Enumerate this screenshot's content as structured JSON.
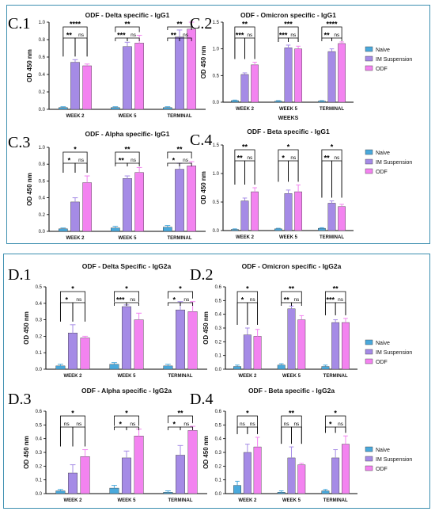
{
  "colors": {
    "Naive": "#4aa9dc",
    "IM Suspension": "#a58be6",
    "ODF": "#f383f0",
    "axis": "#000000"
  },
  "legend": {
    "entries": [
      "Naive",
      "IM Suspension",
      "ODF"
    ]
  },
  "chart_data": [
    {
      "id": "c1",
      "label": "C.1",
      "type": "bar",
      "title": "ODF - Delta specific - IgG1",
      "ylabel": "OD 450 nm",
      "xlabel": "",
      "ylim": [
        0,
        1.0
      ],
      "yticks": [
        "0.0",
        "0.2",
        "0.4",
        "0.6",
        "0.8",
        "1.0"
      ],
      "categories": [
        "WEEK 2",
        "WEEK 5",
        "TERMINAL"
      ],
      "series": [
        {
          "name": "Naive",
          "values": [
            0.02,
            0.02,
            0.02
          ],
          "errors": [
            0.01,
            0.01,
            0.01
          ]
        },
        {
          "name": "IM Suspension",
          "values": [
            0.54,
            0.72,
            0.83
          ],
          "errors": [
            0.03,
            0.05,
            0.08
          ]
        },
        {
          "name": "ODF",
          "values": [
            0.5,
            0.76,
            0.92
          ],
          "errors": [
            0.02,
            0.09,
            0.08
          ]
        }
      ],
      "brackets": [
        [
          "WEEK 2",
          "Naive",
          "ODF",
          "****"
        ],
        [
          "WEEK 2",
          "Naive",
          "IM Suspension",
          "**"
        ],
        [
          "WEEK 2",
          "IM Suspension",
          "ODF",
          "ns"
        ],
        [
          "WEEK 5",
          "Naive",
          "ODF",
          "**"
        ],
        [
          "WEEK 5",
          "Naive",
          "IM Suspension",
          "***"
        ],
        [
          "WEEK 5",
          "IM Suspension",
          "ODF",
          "ns"
        ],
        [
          "TERMINAL",
          "Naive",
          "ODF",
          "**"
        ],
        [
          "TERMINAL",
          "Naive",
          "IM Suspension",
          "**"
        ],
        [
          "TERMINAL",
          "IM Suspension",
          "ODF",
          "ns"
        ]
      ]
    },
    {
      "id": "c2",
      "label": "C.2",
      "type": "bar",
      "title": "ODF - Omicron specific - IgG1",
      "ylabel": "OD 450 nm",
      "xlabel": "WEEKS",
      "ylim": [
        0,
        1.5
      ],
      "yticks": [
        "0.0",
        "0.5",
        "1.0",
        "1.5"
      ],
      "categories": [
        "WEEK 2",
        "WEEK 5",
        "TERMINAL"
      ],
      "series": [
        {
          "name": "Naive",
          "values": [
            0.03,
            0.02,
            0.02
          ],
          "errors": [
            0.01,
            0.01,
            0.01
          ]
        },
        {
          "name": "IM Suspension",
          "values": [
            0.52,
            1.02,
            0.95
          ],
          "errors": [
            0.03,
            0.05,
            0.05
          ]
        },
        {
          "name": "ODF",
          "values": [
            0.7,
            1.0,
            1.1
          ],
          "errors": [
            0.05,
            0.05,
            0.03
          ]
        }
      ],
      "brackets": [
        [
          "WEEK 2",
          "Naive",
          "ODF",
          "**"
        ],
        [
          "WEEK 2",
          "Naive",
          "IM Suspension",
          "***"
        ],
        [
          "WEEK 2",
          "IM Suspension",
          "ODF",
          "ns"
        ],
        [
          "WEEK 5",
          "Naive",
          "ODF",
          "***"
        ],
        [
          "WEEK 5",
          "Naive",
          "IM Suspension",
          "***"
        ],
        [
          "WEEK 5",
          "IM Suspension",
          "ODF",
          "ns"
        ],
        [
          "TERMINAL",
          "Naive",
          "ODF",
          "****"
        ],
        [
          "TERMINAL",
          "Naive",
          "IM Suspension",
          "**"
        ],
        [
          "TERMINAL",
          "IM Suspension",
          "ODF",
          "ns"
        ]
      ]
    },
    {
      "id": "c3",
      "label": "C.3",
      "type": "bar",
      "title": "ODF - Alpha specific- IgG1",
      "ylabel": "OD 450 nm",
      "xlabel": "",
      "ylim": [
        0,
        1.0
      ],
      "yticks": [
        "0.0",
        "0.2",
        "0.4",
        "0.6",
        "0.8",
        "1.0"
      ],
      "categories": [
        "WEEK 2",
        "WEEK 5",
        "TERMINAL"
      ],
      "series": [
        {
          "name": "Naive",
          "values": [
            0.03,
            0.04,
            0.05
          ],
          "errors": [
            0.01,
            0.02,
            0.02
          ]
        },
        {
          "name": "IM Suspension",
          "values": [
            0.35,
            0.63,
            0.74
          ],
          "errors": [
            0.05,
            0.03,
            0.07
          ]
        },
        {
          "name": "ODF",
          "values": [
            0.58,
            0.7,
            0.78
          ],
          "errors": [
            0.08,
            0.06,
            0.05
          ]
        }
      ],
      "brackets": [
        [
          "WEEK 2",
          "Naive",
          "ODF",
          "*"
        ],
        [
          "WEEK 2",
          "Naive",
          "IM Suspension",
          "*"
        ],
        [
          "WEEK 2",
          "IM Suspension",
          "ODF",
          "ns"
        ],
        [
          "WEEK 5",
          "Naive",
          "ODF",
          "**"
        ],
        [
          "WEEK 5",
          "Naive",
          "IM Suspension",
          "**"
        ],
        [
          "WEEK 5",
          "IM Suspension",
          "ODF",
          "ns"
        ],
        [
          "TERMINAL",
          "Naive",
          "ODF",
          "**"
        ],
        [
          "TERMINAL",
          "Naive",
          "IM Suspension",
          "*"
        ],
        [
          "TERMINAL",
          "IM Suspension",
          "ODF",
          "ns"
        ]
      ]
    },
    {
      "id": "c4",
      "label": "C.4",
      "type": "bar",
      "title": "ODF - Beta specific - IgG1",
      "ylabel": "OD 450 nm",
      "xlabel": "",
      "ylim": [
        0,
        1.5
      ],
      "yticks": [
        "0.0",
        "0.5",
        "1.0",
        "1.5"
      ],
      "categories": [
        "WEEK 2",
        "WEEK 5",
        "TERMINAL"
      ],
      "series": [
        {
          "name": "Naive",
          "values": [
            0.02,
            0.03,
            0.04
          ],
          "errors": [
            0.01,
            0.01,
            0.01
          ]
        },
        {
          "name": "IM Suspension",
          "values": [
            0.52,
            0.65,
            0.48
          ],
          "errors": [
            0.05,
            0.06,
            0.04
          ]
        },
        {
          "name": "ODF",
          "values": [
            0.68,
            0.68,
            0.42
          ],
          "errors": [
            0.07,
            0.12,
            0.04
          ]
        }
      ],
      "brackets": [
        [
          "WEEK 2",
          "Naive",
          "ODF",
          "**"
        ],
        [
          "WEEK 2",
          "Naive",
          "IM Suspension",
          "**"
        ],
        [
          "WEEK 2",
          "IM Suspension",
          "ODF",
          "ns"
        ],
        [
          "WEEK 5",
          "Naive",
          "ODF",
          "*"
        ],
        [
          "WEEK 5",
          "Naive",
          "IM Suspension",
          "*"
        ],
        [
          "WEEK 5",
          "IM Suspension",
          "ODF",
          "ns"
        ],
        [
          "TERMINAL",
          "Naive",
          "ODF",
          "*"
        ],
        [
          "TERMINAL",
          "Naive",
          "IM Suspension",
          "**"
        ],
        [
          "TERMINAL",
          "IM Suspension",
          "ODF",
          "ns"
        ]
      ]
    },
    {
      "id": "d1",
      "label": "D.1",
      "type": "bar",
      "title": "ODF - Delta Specific - IgG2a",
      "ylabel": "OD 450 nm",
      "xlabel": "",
      "ylim": [
        0,
        0.5
      ],
      "yticks": [
        "0.0",
        "0.1",
        "0.2",
        "0.3",
        "0.4",
        "0.5"
      ],
      "categories": [
        "WEEK 2",
        "WEEK 5",
        "TERMINAL"
      ],
      "series": [
        {
          "name": "Naive",
          "values": [
            0.02,
            0.03,
            0.02
          ],
          "errors": [
            0.01,
            0.01,
            0.01
          ]
        },
        {
          "name": "IM Suspension",
          "values": [
            0.22,
            0.38,
            0.36
          ],
          "errors": [
            0.05,
            0.01,
            0.05
          ]
        },
        {
          "name": "ODF",
          "values": [
            0.19,
            0.3,
            0.35
          ],
          "errors": [
            0.01,
            0.04,
            0.06
          ]
        }
      ],
      "brackets": [
        [
          "WEEK 2",
          "Naive",
          "ODF",
          "*"
        ],
        [
          "WEEK 2",
          "Naive",
          "IM Suspension",
          "*"
        ],
        [
          "WEEK 2",
          "IM Suspension",
          "ODF",
          "ns"
        ],
        [
          "WEEK 5",
          "Naive",
          "ODF",
          "*"
        ],
        [
          "WEEK 5",
          "Naive",
          "IM Suspension",
          "***"
        ],
        [
          "WEEK 5",
          "IM Suspension",
          "ODF",
          "ns"
        ],
        [
          "TERMINAL",
          "Naive",
          "ODF",
          "*"
        ],
        [
          "TERMINAL",
          "Naive",
          "IM Suspension",
          "*"
        ],
        [
          "TERMINAL",
          "IM Suspension",
          "ODF",
          "ns"
        ]
      ]
    },
    {
      "id": "d2",
      "label": "D.2",
      "type": "bar",
      "title": "ODF - Omicron specific - IgG2a",
      "ylabel": "OD 450 nm",
      "xlabel": "",
      "ylim": [
        0,
        0.6
      ],
      "yticks": [
        "0.0",
        "0.1",
        "0.2",
        "0.3",
        "0.4",
        "0.5",
        "0.6"
      ],
      "categories": [
        "WEEK 2",
        "WEEK 5",
        "TERMINAL"
      ],
      "series": [
        {
          "name": "Naive",
          "values": [
            0.02,
            0.03,
            0.02
          ],
          "errors": [
            0.01,
            0.01,
            0.01
          ]
        },
        {
          "name": "IM Suspension",
          "values": [
            0.25,
            0.44,
            0.34
          ],
          "errors": [
            0.05,
            0.02,
            0.02
          ]
        },
        {
          "name": "ODF",
          "values": [
            0.24,
            0.36,
            0.34
          ],
          "errors": [
            0.05,
            0.03,
            0.03
          ]
        }
      ],
      "brackets": [
        [
          "WEEK 2",
          "Naive",
          "ODF",
          "*"
        ],
        [
          "WEEK 2",
          "Naive",
          "IM Suspension",
          "*"
        ],
        [
          "WEEK 2",
          "IM Suspension",
          "ODF",
          "ns"
        ],
        [
          "WEEK 5",
          "Naive",
          "ODF",
          "**"
        ],
        [
          "WEEK 5",
          "Naive",
          "IM Suspension",
          "**"
        ],
        [
          "WEEK 5",
          "IM Suspension",
          "ODF",
          "ns"
        ],
        [
          "TERMINAL",
          "Naive",
          "ODF",
          "**"
        ],
        [
          "TERMINAL",
          "Naive",
          "IM Suspension",
          "***"
        ],
        [
          "TERMINAL",
          "IM Suspension",
          "ODF",
          "ns"
        ]
      ]
    },
    {
      "id": "d3",
      "label": "D.3",
      "type": "bar",
      "title": "ODF - Alpha specific - IgG2a",
      "ylabel": "OD 450 nm",
      "xlabel": "",
      "ylim": [
        0,
        0.6
      ],
      "yticks": [
        "0.0",
        "0.1",
        "0.2",
        "0.3",
        "0.4",
        "0.5",
        "0.6"
      ],
      "categories": [
        "WEEK 2",
        "WEEK 5",
        "TERMINAL"
      ],
      "series": [
        {
          "name": "Naive",
          "values": [
            0.02,
            0.04,
            0.01
          ],
          "errors": [
            0.01,
            0.02,
            0.01
          ]
        },
        {
          "name": "IM Suspension",
          "values": [
            0.15,
            0.26,
            0.28
          ],
          "errors": [
            0.06,
            0.05,
            0.07
          ]
        },
        {
          "name": "ODF",
          "values": [
            0.27,
            0.42,
            0.46
          ],
          "errors": [
            0.05,
            0.05,
            0.03
          ]
        }
      ],
      "brackets": [
        [
          "WEEK 2",
          "Naive",
          "ODF",
          "*"
        ],
        [
          "WEEK 2",
          "Naive",
          "IM Suspension",
          "ns"
        ],
        [
          "WEEK 2",
          "IM Suspension",
          "ODF",
          "ns"
        ],
        [
          "WEEK 5",
          "Naive",
          "ODF",
          "*"
        ],
        [
          "WEEK 5",
          "Naive",
          "IM Suspension",
          "*"
        ],
        [
          "WEEK 5",
          "IM Suspension",
          "ODF",
          "ns"
        ],
        [
          "TERMINAL",
          "Naive",
          "ODF",
          "**"
        ],
        [
          "TERMINAL",
          "Naive",
          "IM Suspension",
          "*"
        ],
        [
          "TERMINAL",
          "IM Suspension",
          "ODF",
          "ns"
        ]
      ]
    },
    {
      "id": "d4",
      "label": "D.4",
      "type": "bar",
      "title": "ODF - Beta specific - IgG2a",
      "ylabel": "OD 450 nm",
      "xlabel": "",
      "ylim": [
        0,
        0.6
      ],
      "yticks": [
        "0.0",
        "0.1",
        "0.2",
        "0.3",
        "0.4",
        "0.5",
        "0.6"
      ],
      "categories": [
        "WEEK 2",
        "WEEK 5",
        "TERMINAL"
      ],
      "series": [
        {
          "name": "Naive",
          "values": [
            0.06,
            0.01,
            0.02
          ],
          "errors": [
            0.03,
            0.01,
            0.01
          ]
        },
        {
          "name": "IM Suspension",
          "values": [
            0.3,
            0.26,
            0.26
          ],
          "errors": [
            0.06,
            0.08,
            0.06
          ]
        },
        {
          "name": "ODF",
          "values": [
            0.34,
            0.21,
            0.36
          ],
          "errors": [
            0.07,
            0.01,
            0.06
          ]
        }
      ],
      "brackets": [
        [
          "WEEK 2",
          "Naive",
          "ODF",
          "*"
        ],
        [
          "WEEK 2",
          "Naive",
          "IM Suspension",
          "ns"
        ],
        [
          "WEEK 2",
          "IM Suspension",
          "ODF",
          "ns"
        ],
        [
          "WEEK 5",
          "Naive",
          "ODF",
          "**"
        ],
        [
          "WEEK 5",
          "Naive",
          "IM Suspension",
          "ns"
        ],
        [
          "WEEK 5",
          "IM Suspension",
          "ODF",
          "ns"
        ],
        [
          "TERMINAL",
          "Naive",
          "ODF",
          "*"
        ],
        [
          "TERMINAL",
          "Naive",
          "IM Suspension",
          "*"
        ],
        [
          "TERMINAL",
          "IM Suspension",
          "ODF",
          "ns"
        ]
      ]
    }
  ]
}
